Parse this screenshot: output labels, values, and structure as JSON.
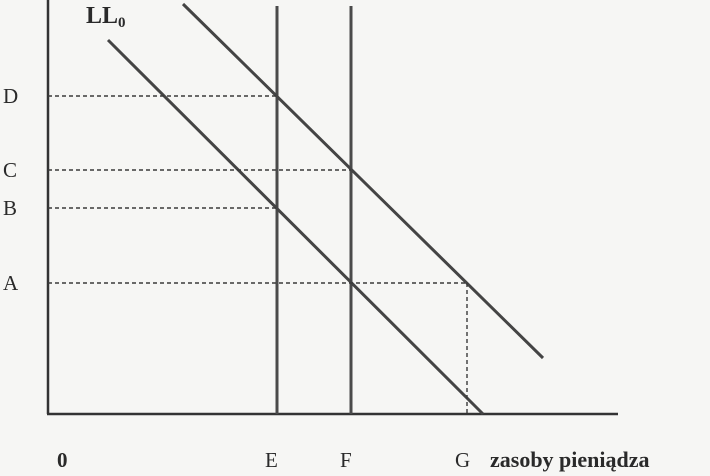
{
  "diagram": {
    "curve_label": {
      "main": "LL",
      "subscript": "0"
    },
    "y_axis_labels": {
      "D": "D",
      "C": "C",
      "B": "B",
      "A": "A"
    },
    "x_axis_labels": {
      "origin": "0",
      "E": "E",
      "F": "F",
      "G": "G"
    },
    "x_axis_title": "zasoby pieniądza",
    "colors": {
      "line": "#444444",
      "axis": "#333333",
      "dashed": "#3a3a3a",
      "text": "#2a2a2a",
      "background": "#f6f6f4"
    }
  }
}
